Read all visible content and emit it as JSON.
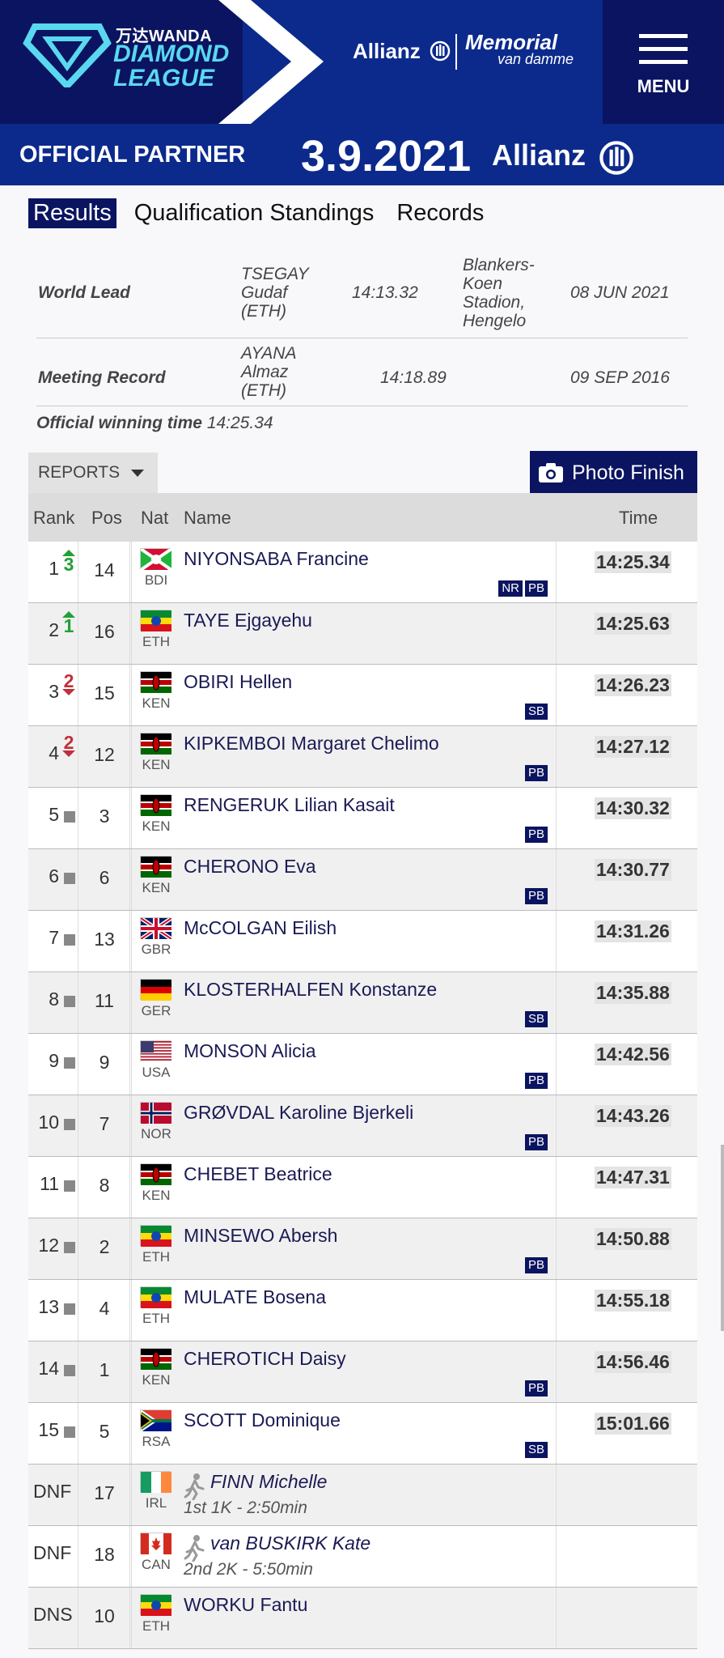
{
  "header": {
    "sponsor": "万达WANDA",
    "brand_line1": "DIAMOND",
    "brand_line2": "LEAGUE",
    "allianz_top": "Allianz",
    "memorial": "Memorial",
    "memorial_sub": "van damme",
    "menu_label": "MENU",
    "official_partner": "OFFICIAL PARTNER",
    "date": "3.9.2021",
    "allianz_strip": "Allianz"
  },
  "tabs": [
    {
      "label": "Results",
      "active": true
    },
    {
      "label": "Qualification Standings",
      "active": false
    },
    {
      "label": "Records",
      "active": false
    }
  ],
  "records": {
    "world_lead": {
      "label": "World Lead",
      "name": [
        "TSEGAY",
        "Gudaf",
        "(ETH)"
      ],
      "time": "14:13.32",
      "venue": [
        "Blankers-",
        "Koen",
        "Stadion,",
        "Hengelo"
      ],
      "date": "08 JUN 2021"
    },
    "meeting_record": {
      "label": "Meeting Record",
      "name": [
        "AYANA",
        "Almaz",
        "(ETH)"
      ],
      "time": "14:18.89",
      "date": "09 SEP 2016"
    },
    "official_winning": {
      "label": "Official winning time",
      "time": "14:25.34"
    }
  },
  "controls": {
    "reports": "REPORTS",
    "photo_finish": "Photo Finish"
  },
  "columns": {
    "rank": "Rank",
    "pos": "Pos",
    "nat": "Nat",
    "name": "Name",
    "time": "Time"
  },
  "results": [
    {
      "rank": "1",
      "move": "up",
      "move_n": "3",
      "pos": "14",
      "nat": "BDI",
      "name": "NIYONSABA Francine",
      "badges": [
        "NR",
        "PB"
      ],
      "time": "14:25.34"
    },
    {
      "rank": "2",
      "move": "up",
      "move_n": "1",
      "pos": "16",
      "nat": "ETH",
      "name": "TAYE Ejgayehu",
      "badges": [],
      "time": "14:25.63"
    },
    {
      "rank": "3",
      "move": "down",
      "move_n": "2",
      "pos": "15",
      "nat": "KEN",
      "name": "OBIRI Hellen",
      "badges": [
        "SB"
      ],
      "time": "14:26.23"
    },
    {
      "rank": "4",
      "move": "down",
      "move_n": "2",
      "pos": "12",
      "nat": "KEN",
      "name": "KIPKEMBOI Margaret Chelimo",
      "badges": [
        "PB"
      ],
      "time": "14:27.12"
    },
    {
      "rank": "5",
      "move": "same",
      "move_n": "",
      "pos": "3",
      "nat": "KEN",
      "name": "RENGERUK Lilian Kasait",
      "badges": [
        "PB"
      ],
      "time": "14:30.32"
    },
    {
      "rank": "6",
      "move": "same",
      "move_n": "",
      "pos": "6",
      "nat": "KEN",
      "name": "CHERONO Eva",
      "badges": [
        "PB"
      ],
      "time": "14:30.77"
    },
    {
      "rank": "7",
      "move": "same",
      "move_n": "",
      "pos": "13",
      "nat": "GBR",
      "name": "McCOLGAN Eilish",
      "badges": [],
      "time": "14:31.26"
    },
    {
      "rank": "8",
      "move": "same",
      "move_n": "",
      "pos": "11",
      "nat": "GER",
      "name": "KLOSTERHALFEN Konstanze",
      "badges": [
        "SB"
      ],
      "time": "14:35.88"
    },
    {
      "rank": "9",
      "move": "same",
      "move_n": "",
      "pos": "9",
      "nat": "USA",
      "name": "MONSON Alicia",
      "badges": [
        "PB"
      ],
      "time": "14:42.56"
    },
    {
      "rank": "10",
      "move": "same",
      "move_n": "",
      "pos": "7",
      "nat": "NOR",
      "name": "GRØVDAL Karoline Bjerkeli",
      "badges": [
        "PB"
      ],
      "time": "14:43.26"
    },
    {
      "rank": "11",
      "move": "same",
      "move_n": "",
      "pos": "8",
      "nat": "KEN",
      "name": "CHEBET Beatrice",
      "badges": [],
      "time": "14:47.31"
    },
    {
      "rank": "12",
      "move": "same",
      "move_n": "",
      "pos": "2",
      "nat": "ETH",
      "name": "MINSEWO Abersh",
      "badges": [
        "PB"
      ],
      "time": "14:50.88"
    },
    {
      "rank": "13",
      "move": "same",
      "move_n": "",
      "pos": "4",
      "nat": "ETH",
      "name": "MULATE Bosena",
      "badges": [],
      "time": "14:55.18"
    },
    {
      "rank": "14",
      "move": "same",
      "move_n": "",
      "pos": "1",
      "nat": "KEN",
      "name": "CHEROTICH Daisy",
      "badges": [
        "PB"
      ],
      "time": "14:56.46"
    },
    {
      "rank": "15",
      "move": "same",
      "move_n": "",
      "pos": "5",
      "nat": "RSA",
      "name": "SCOTT Dominique",
      "badges": [
        "SB"
      ],
      "time": "15:01.66"
    },
    {
      "rank": "DNF",
      "move": "none",
      "move_n": "",
      "pos": "17",
      "nat": "IRL",
      "name": "FINN Michelle",
      "dnf_note": "1st 1K - 2:50min",
      "badges": [],
      "time": ""
    },
    {
      "rank": "DNF",
      "move": "none",
      "move_n": "",
      "pos": "18",
      "nat": "CAN",
      "name": "van BUSKIRK Kate",
      "dnf_note": "2nd 2K - 5:50min",
      "badges": [],
      "time": ""
    },
    {
      "rank": "DNS",
      "move": "none",
      "move_n": "",
      "pos": "10",
      "nat": "ETH",
      "name": "WORKU Fantu",
      "badges": [],
      "time": ""
    }
  ]
}
